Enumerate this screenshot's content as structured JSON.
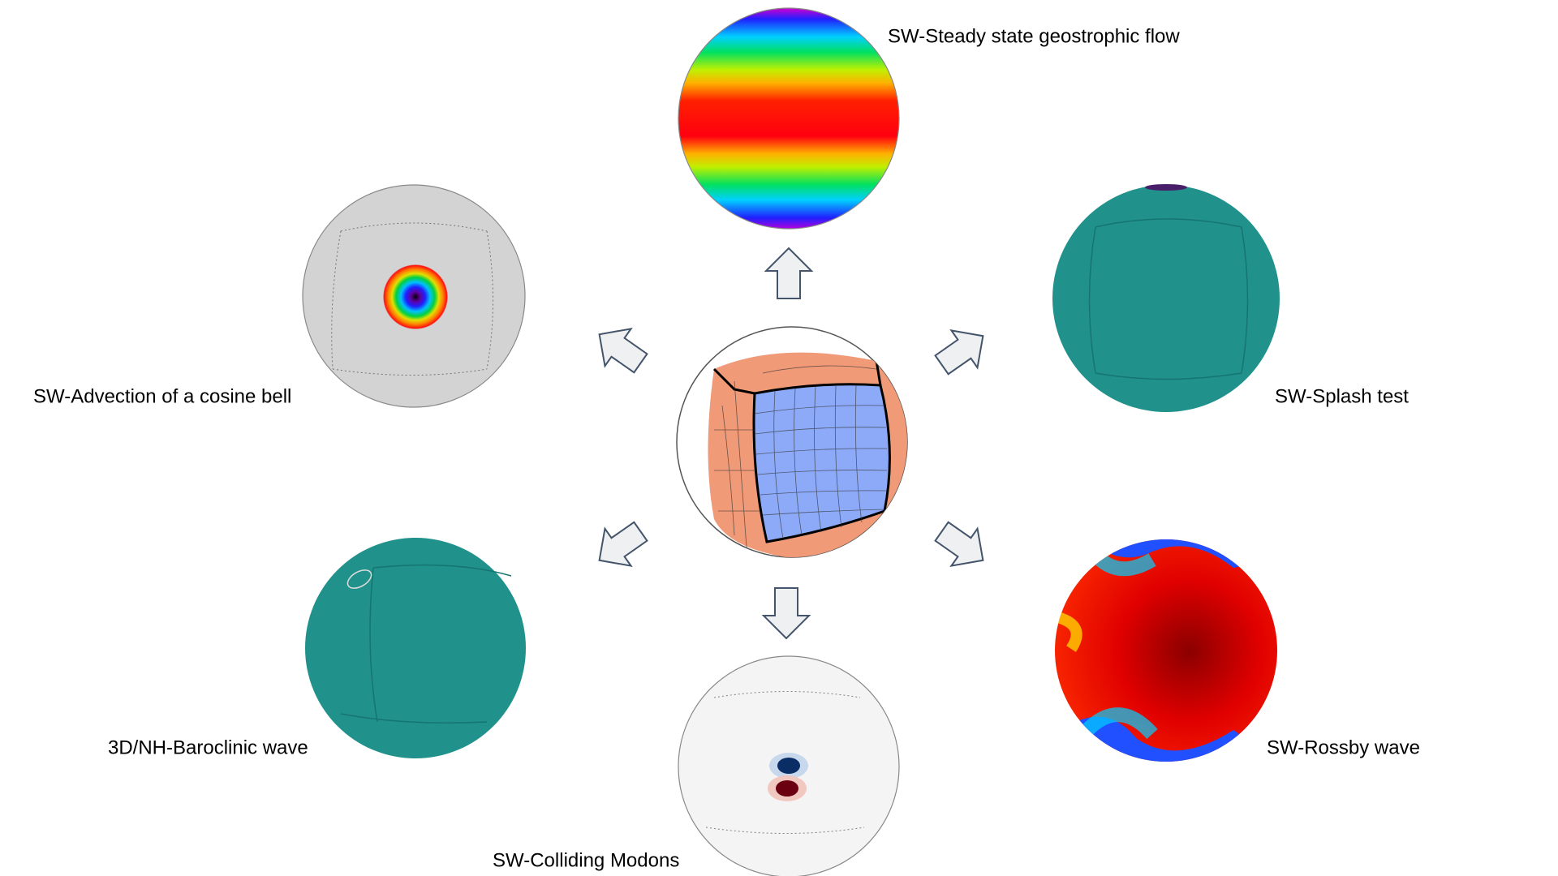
{
  "nodes": [
    {
      "label": "SW-Steady state geostrophic flow"
    },
    {
      "label": "SW-Advection of a cosine bell"
    },
    {
      "label": "SW-Splash test"
    },
    {
      "label": "3D/NH-Baroclinic wave"
    },
    {
      "label": "SW-Colliding Modons"
    },
    {
      "label": "SW-Rossby wave"
    }
  ]
}
